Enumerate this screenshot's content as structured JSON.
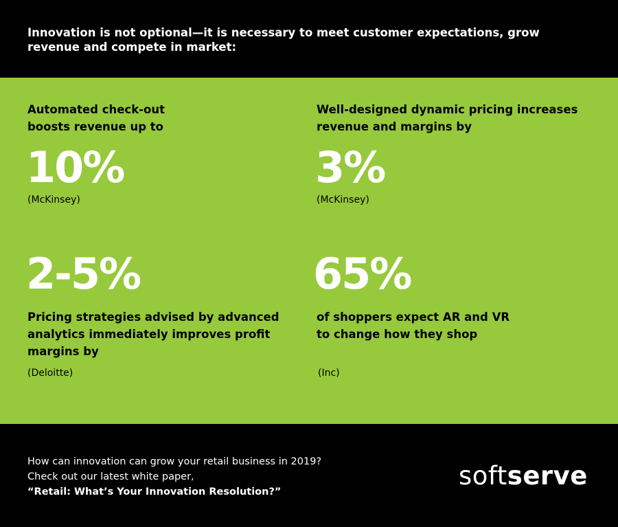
{
  "colors": {
    "background": "#000000",
    "accent_green": "#97c93c",
    "text_white": "#ffffff",
    "text_black": "#000000"
  },
  "header": {
    "headline": "Innovation is not optional—it is  necessary to meet customer expectations, grow\nrevenue and compete in market:"
  },
  "stats": [
    {
      "text": "Automated check-out\nboosts revenue up to",
      "value": "10%",
      "source": "(McKinsey)"
    },
    {
      "text": "Well-designed dynamic pricing increases\nrevenue and margins by",
      "value": "3%",
      "source": "(McKinsey)"
    },
    {
      "value": "2-5%",
      "text": "Pricing strategies advised by advanced\nanalytics immediately improves profit\nmargins by",
      "source": "(Deloitte)"
    },
    {
      "value": "65%",
      "text": "of shoppers expect AR and VR\nto change how they shop",
      "source": "(Inc)"
    }
  ],
  "footer": {
    "line1": "How can innovation can grow your retail business in 2019?",
    "line2": "Check out our latest white paper,",
    "line3": "“Retail: What’s Your Innovation Resolution?”",
    "logo_light": "soft",
    "logo_bold": "serve"
  }
}
